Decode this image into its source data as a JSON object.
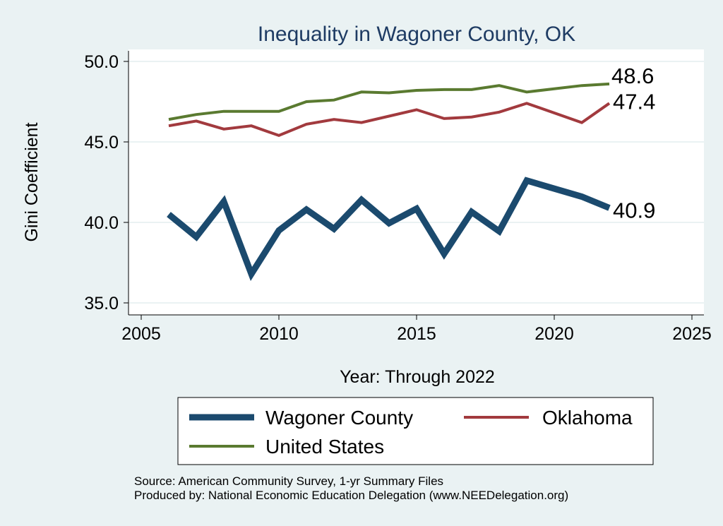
{
  "chart_data": {
    "type": "line",
    "title": "Inequality in Wagoner County, OK",
    "xlabel": "Year: Through 2022",
    "ylabel": "Gini Coefficient",
    "xlim": [
      2005,
      2025
    ],
    "ylim": [
      35,
      50
    ],
    "x_ticks": [
      "2005",
      "2010",
      "2015",
      "2020",
      "2025"
    ],
    "y_ticks": [
      "35.0",
      "40.0",
      "45.0",
      "50.0"
    ],
    "grid": true,
    "legend_position": "bottom",
    "series": [
      {
        "name": "Wagoner County",
        "color": "#1b4a6e",
        "x": [
          2006,
          2007,
          2008,
          2009,
          2010,
          2011,
          2012,
          2013,
          2014,
          2015,
          2016,
          2017,
          2018,
          2019,
          2021,
          2022
        ],
        "values": [
          40.5,
          39.1,
          41.3,
          36.8,
          39.5,
          40.8,
          39.6,
          41.4,
          39.95,
          40.85,
          38.05,
          40.65,
          39.45,
          42.6,
          41.6,
          40.9
        ],
        "end_label": "40.9"
      },
      {
        "name": "Oklahoma",
        "color": "#a23a3e",
        "x": [
          2006,
          2007,
          2008,
          2009,
          2010,
          2011,
          2012,
          2013,
          2014,
          2015,
          2016,
          2017,
          2018,
          2019,
          2021,
          2022
        ],
        "values": [
          46.0,
          46.3,
          45.8,
          46.0,
          45.4,
          46.1,
          46.4,
          46.2,
          46.6,
          47.0,
          46.45,
          46.55,
          46.85,
          47.4,
          46.2,
          47.4
        ],
        "end_label": "47.4"
      },
      {
        "name": "United States",
        "color": "#5a7a30",
        "x": [
          2006,
          2007,
          2008,
          2009,
          2010,
          2011,
          2012,
          2013,
          2014,
          2015,
          2016,
          2017,
          2018,
          2019,
          2021,
          2022
        ],
        "values": [
          46.4,
          46.7,
          46.9,
          46.9,
          46.9,
          47.5,
          47.6,
          48.1,
          48.05,
          48.2,
          48.25,
          48.25,
          48.5,
          48.1,
          48.5,
          48.6
        ],
        "end_label": "48.6"
      }
    ],
    "source_lines": [
      "Source: American Community Survey, 1-yr Summary Files",
      "Produced by: National Economic Education Delegation (www.NEEDelegation.org)"
    ]
  }
}
